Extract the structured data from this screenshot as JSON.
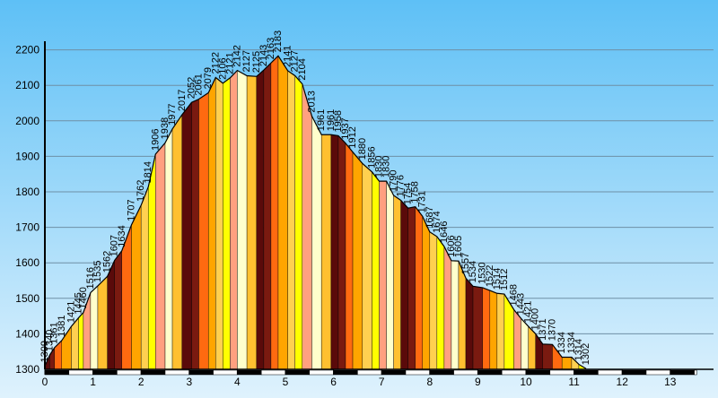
{
  "chart_data": {
    "type": "area",
    "title": "",
    "xlabel": "",
    "ylabel": "",
    "xlim": [
      0,
      13.55
    ],
    "ylim": [
      1300,
      2200
    ],
    "x_ticks": [
      0,
      1,
      2,
      3,
      4,
      5,
      6,
      7,
      8,
      9,
      10,
      11,
      12,
      13
    ],
    "y_ticks": [
      1300,
      1400,
      1500,
      1600,
      1700,
      1800,
      1900,
      2000,
      2100,
      2200
    ],
    "grid": "horizontal",
    "background_top": "#5ec0f6",
    "background_bottom": "#dff2fd",
    "segment_colors": [
      "#5a0a0a",
      "#7a1a10",
      "#ff6a10",
      "#ffa500",
      "#ffd050",
      "#ffff00",
      "#ffa080",
      "#ffffcc",
      "#ffc030"
    ],
    "profile": [
      [
        0.0,
        1309
      ],
      [
        0.1,
        1340
      ],
      [
        0.2,
        1361
      ],
      [
        0.35,
        1381
      ],
      [
        0.55,
        1421
      ],
      [
        0.7,
        1445
      ],
      [
        0.8,
        1460
      ],
      [
        0.95,
        1516
      ],
      [
        1.1,
        1535
      ],
      [
        1.3,
        1562
      ],
      [
        1.45,
        1607
      ],
      [
        1.6,
        1634
      ],
      [
        1.8,
        1707
      ],
      [
        2.0,
        1762
      ],
      [
        2.15,
        1814
      ],
      [
        2.3,
        1906
      ],
      [
        2.5,
        1938
      ],
      [
        2.65,
        1977
      ],
      [
        2.85,
        2017
      ],
      [
        3.05,
        2052
      ],
      [
        3.2,
        2061
      ],
      [
        3.4,
        2079
      ],
      [
        3.55,
        2122
      ],
      [
        3.7,
        2106
      ],
      [
        3.85,
        2121
      ],
      [
        4.0,
        2142
      ],
      [
        4.2,
        2127
      ],
      [
        4.4,
        2125
      ],
      [
        4.55,
        2143
      ],
      [
        4.7,
        2163
      ],
      [
        4.85,
        2183
      ],
      [
        5.05,
        2141
      ],
      [
        5.2,
        2127
      ],
      [
        5.35,
        2104
      ],
      [
        5.55,
        2013
      ],
      [
        5.75,
        1961
      ],
      [
        5.95,
        1961
      ],
      [
        6.1,
        1958
      ],
      [
        6.25,
        1937
      ],
      [
        6.4,
        1912
      ],
      [
        6.6,
        1880
      ],
      [
        6.8,
        1856
      ],
      [
        6.95,
        1830
      ],
      [
        7.1,
        1830
      ],
      [
        7.25,
        1790
      ],
      [
        7.4,
        1776
      ],
      [
        7.55,
        1754
      ],
      [
        7.7,
        1758
      ],
      [
        7.85,
        1731
      ],
      [
        8.0,
        1687
      ],
      [
        8.15,
        1674
      ],
      [
        8.3,
        1646
      ],
      [
        8.45,
        1606
      ],
      [
        8.6,
        1605
      ],
      [
        8.75,
        1557
      ],
      [
        8.9,
        1534
      ],
      [
        9.1,
        1530
      ],
      [
        9.25,
        1522
      ],
      [
        9.4,
        1514
      ],
      [
        9.55,
        1512
      ],
      [
        9.75,
        1468
      ],
      [
        9.9,
        1443
      ],
      [
        10.05,
        1421
      ],
      [
        10.2,
        1400
      ],
      [
        10.35,
        1371
      ],
      [
        10.55,
        1370
      ],
      [
        10.75,
        1334
      ],
      [
        10.95,
        1334
      ],
      [
        11.1,
        1314
      ],
      [
        11.25,
        1302
      ]
    ]
  }
}
